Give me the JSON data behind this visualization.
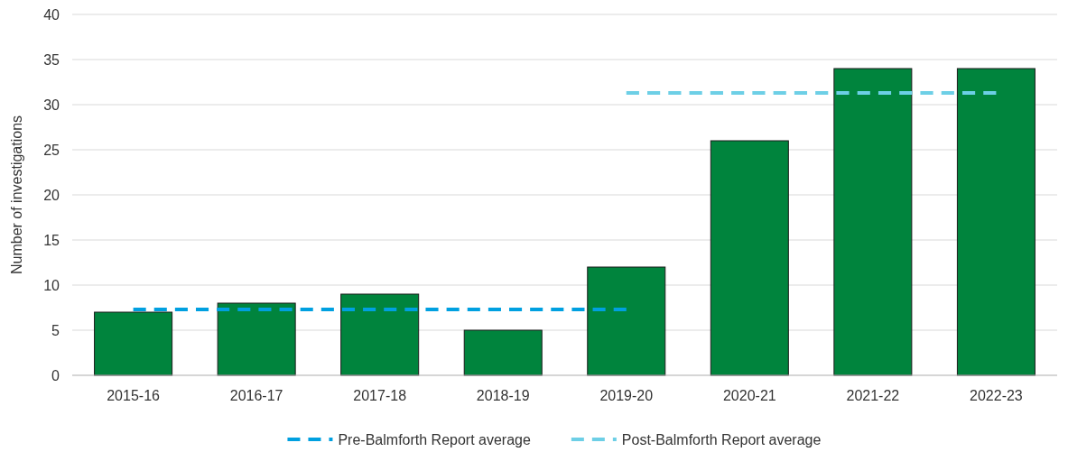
{
  "chart_data": {
    "type": "bar",
    "ylabel": "Number of investigations",
    "categories": [
      "2015-16",
      "2016-17",
      "2017-18",
      "2018-19",
      "2019-20",
      "2020-21",
      "2021-22",
      "2022-23"
    ],
    "series": [
      {
        "color": "#00843d",
        "values": [
          7,
          8,
          9,
          5,
          12,
          26,
          34,
          34
        ]
      },
      {
        "type": "line",
        "name": "Pre-Balmforth Report average",
        "color": "#00a0e0",
        "line_style": "dashed",
        "values": [
          7.3,
          7.3,
          7.3,
          7.3,
          7.3,
          null,
          null,
          null
        ]
      },
      {
        "type": "line",
        "name": "Post-Balmforth Report average",
        "color": "#6dcfe6",
        "line_style": "dashed",
        "values": [
          null,
          null,
          null,
          null,
          31.3,
          31.3,
          31.3,
          31.3
        ]
      }
    ],
    "ylim": [
      0,
      40
    ],
    "yticks": [
      0,
      5,
      10,
      15,
      20,
      25,
      30,
      35,
      40
    ],
    "grid": "y",
    "legend": "bottom"
  }
}
